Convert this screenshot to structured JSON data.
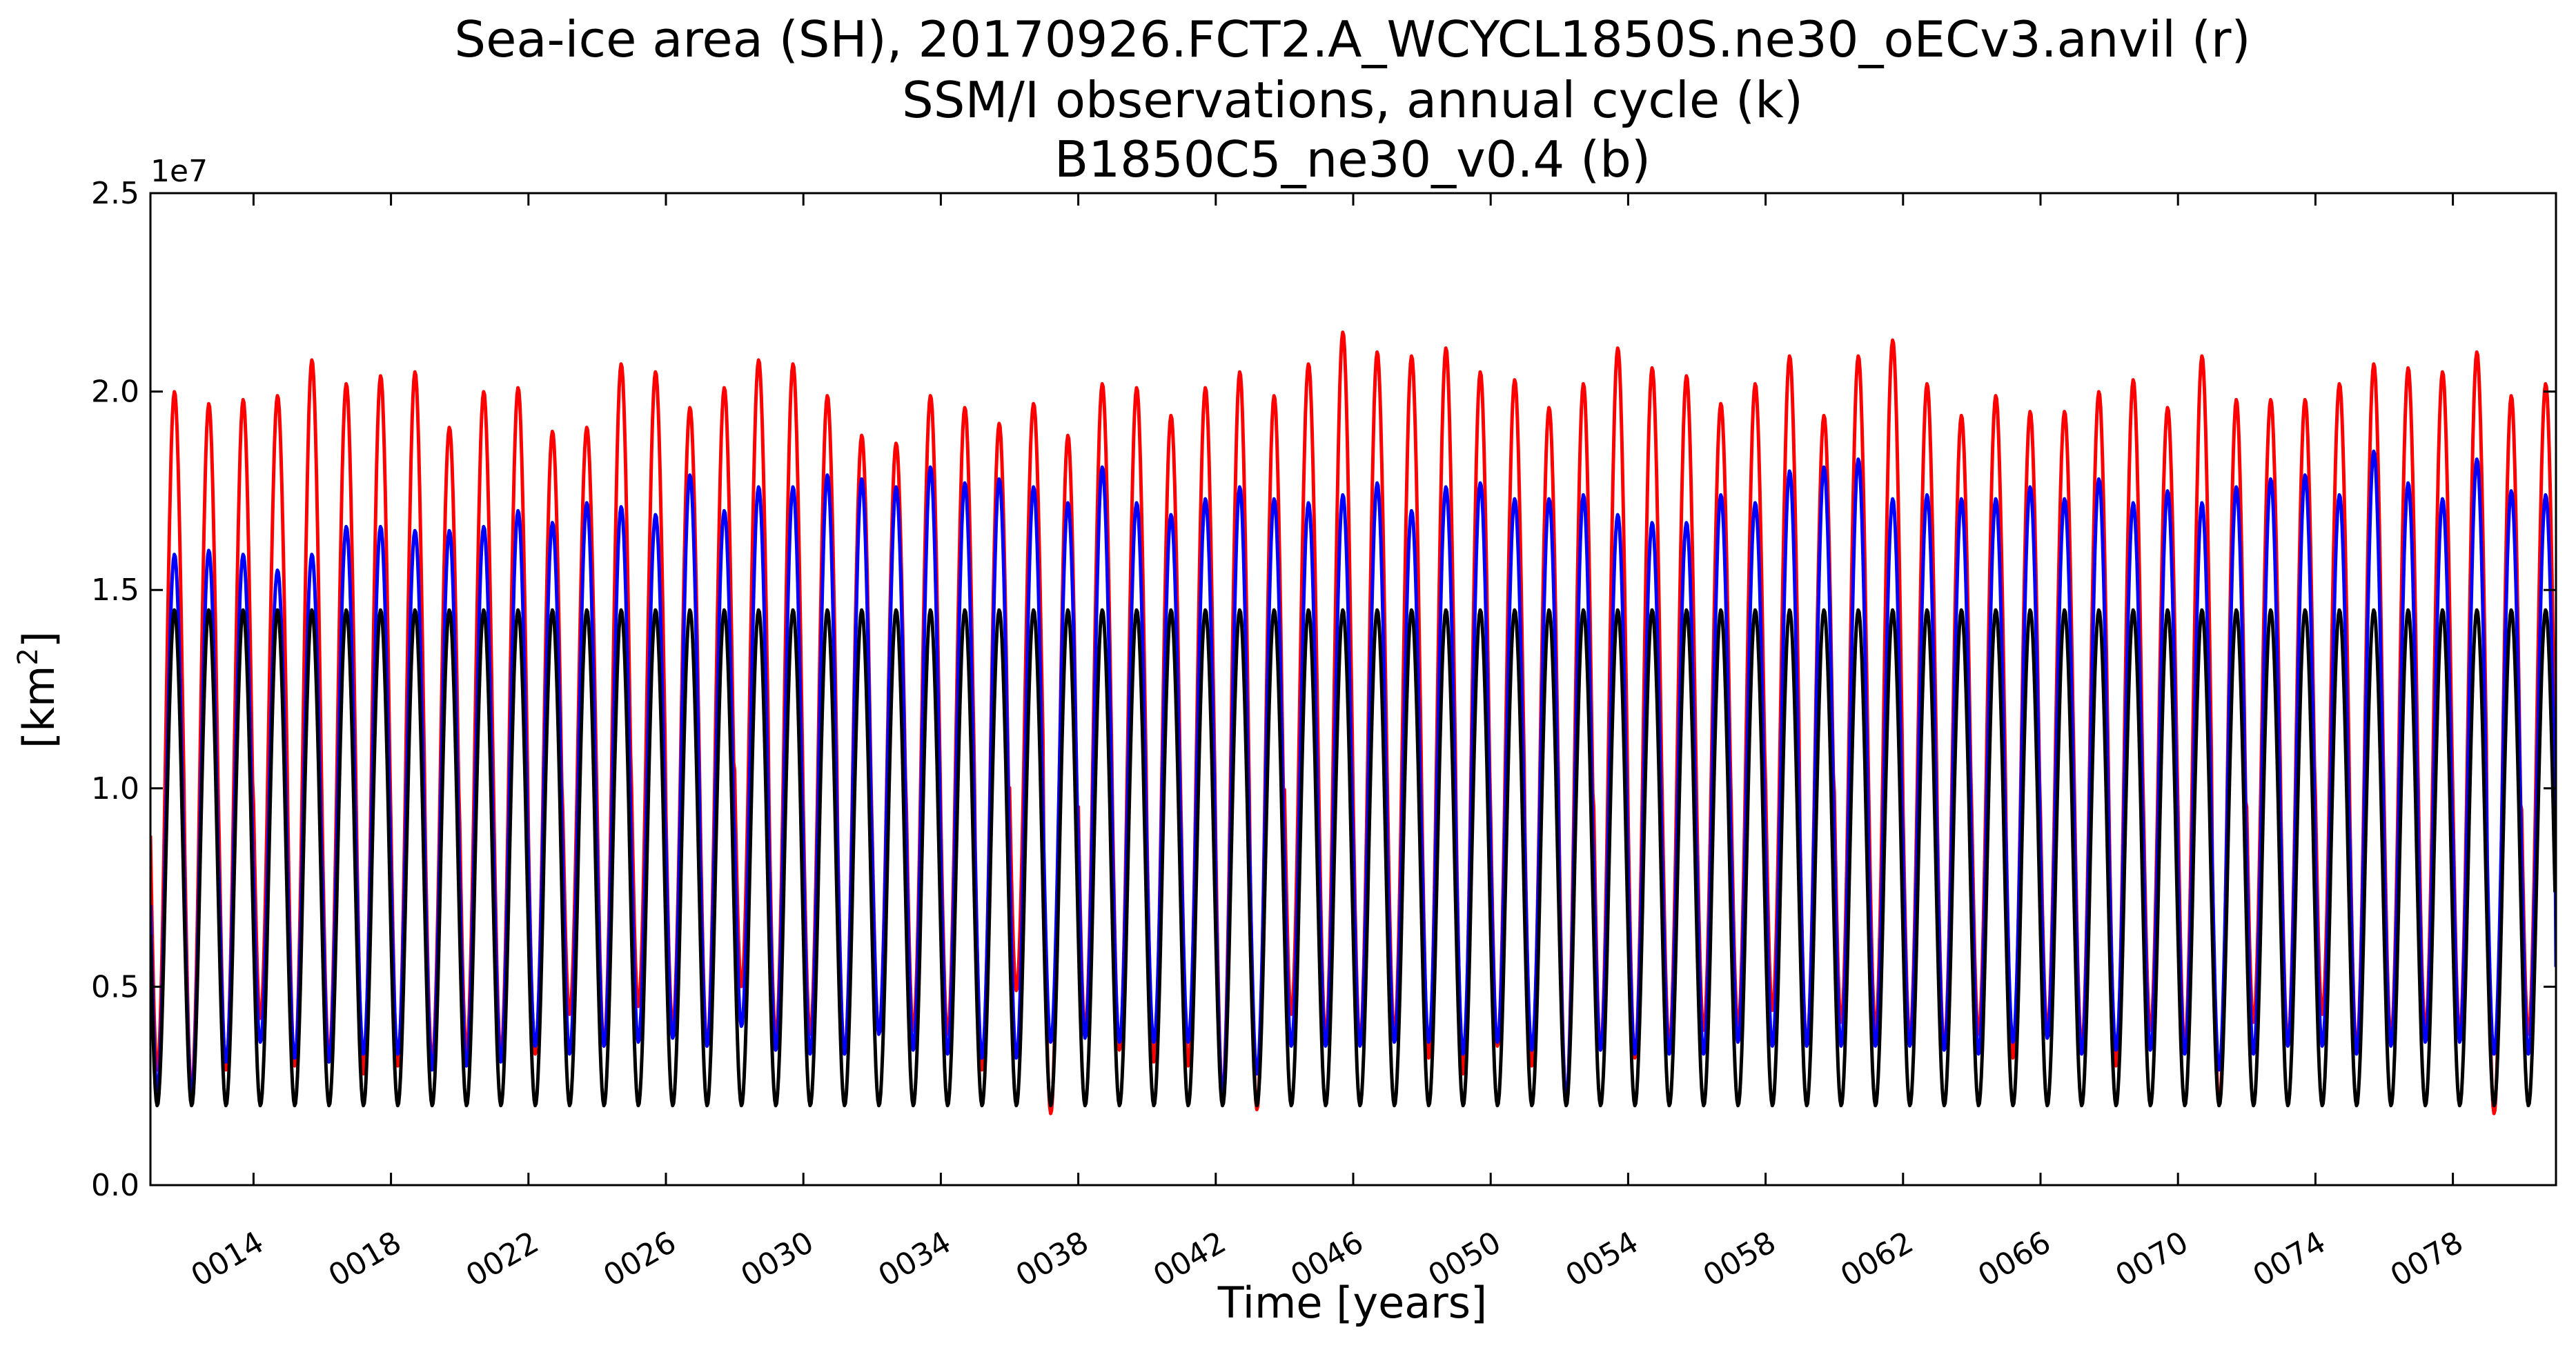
{
  "chart_data": {
    "type": "line",
    "title_lines": [
      "Sea-ice area (SH), 20170926.FCT2.A_WCYCL1850S.ne30_oECv3.anvil (r)",
      "SSM/I observations, annual cycle (k)",
      "B1850C5_ne30_v0.4 (b)"
    ],
    "xlabel": "Time [years]",
    "ylabel_base": "[km",
    "ylabel_sup": "2",
    "ylabel_end": "]",
    "y_offset_label": "1e7",
    "xlim": [
      11,
      81
    ],
    "ylim": [
      0,
      25000000
    ],
    "x_ticks": [
      14,
      18,
      22,
      26,
      30,
      34,
      38,
      42,
      46,
      50,
      54,
      58,
      62,
      66,
      70,
      74,
      78
    ],
    "x_tick_labels": [
      "0014",
      "0018",
      "0022",
      "0026",
      "0030",
      "0034",
      "0038",
      "0042",
      "0046",
      "0050",
      "0054",
      "0058",
      "0062",
      "0066",
      "0070",
      "0074",
      "0078"
    ],
    "y_ticks": [
      0,
      5000000,
      10000000,
      15000000,
      20000000,
      25000000
    ],
    "y_tick_labels": [
      "0.0",
      "0.5",
      "1.0",
      "1.5",
      "2.0",
      "2.5"
    ],
    "peak_time_fraction": 0.7,
    "series": [
      {
        "color": "#ff0000",
        "years": [
          11,
          12,
          13,
          14,
          15,
          16,
          17,
          18,
          19,
          20,
          21,
          22,
          23,
          24,
          25,
          26,
          27,
          28,
          29,
          30,
          31,
          32,
          33,
          34,
          35,
          36,
          37,
          38,
          39,
          40,
          41,
          42,
          43,
          44,
          45,
          46,
          47,
          48,
          49,
          50,
          51,
          52,
          53,
          54,
          55,
          56,
          57,
          58,
          59,
          60,
          61,
          62,
          63,
          64,
          65,
          66,
          67,
          68,
          69,
          70,
          71,
          72,
          73,
          74,
          75,
          76,
          77,
          78,
          79,
          80
        ],
        "annual_max": [
          20000000,
          19700000,
          19800000,
          19900000,
          20800000,
          20200000,
          20400000,
          20500000,
          19100000,
          20000000,
          20100000,
          19000000,
          19100000,
          20700000,
          20500000,
          19600000,
          20100000,
          20800000,
          20700000,
          19900000,
          18900000,
          18700000,
          19900000,
          19600000,
          19200000,
          19700000,
          18900000,
          20200000,
          20100000,
          19400000,
          20100000,
          20500000,
          19900000,
          20700000,
          21500000,
          21000000,
          20900000,
          21100000,
          20500000,
          20300000,
          19600000,
          20200000,
          21100000,
          20600000,
          20400000,
          19700000,
          20200000,
          20900000,
          19400000,
          20900000,
          21300000,
          20200000,
          19400000,
          19900000,
          19500000,
          19500000,
          20000000,
          20300000,
          19600000,
          20900000,
          19800000,
          19800000,
          19800000,
          20200000,
          20700000,
          20600000,
          20500000,
          21000000,
          19900000,
          20200000
        ],
        "annual_min": [
          2900000,
          2400000,
          2900000,
          4200000,
          3000000,
          3200000,
          2800000,
          3000000,
          3100000,
          3400000,
          3300000,
          3300000,
          4300000,
          3500000,
          4500000,
          4000000,
          3500000,
          5000000,
          3700000,
          3800000,
          3300000,
          3800000,
          3900000,
          3800000,
          2900000,
          4900000,
          1800000,
          3900000,
          3400000,
          3100000,
          3000000,
          2300000,
          1900000,
          4300000,
          3700000,
          3600000,
          3800000,
          3200000,
          2800000,
          3500000,
          3000000,
          2100000,
          3400000,
          3200000,
          3500000,
          3900000,
          4000000,
          4400000,
          3500000,
          4100000,
          3900000,
          3700000,
          3500000,
          3800000,
          3200000,
          3900000,
          3500000,
          3000000,
          3900000,
          3500000,
          2000000,
          4100000,
          3600000,
          4300000,
          3400000,
          3700000,
          3900000,
          3800000,
          1800000,
          3800000
        ]
      },
      {
        "color": "#0000ff",
        "years": [
          11,
          12,
          13,
          14,
          15,
          16,
          17,
          18,
          19,
          20,
          21,
          22,
          23,
          24,
          25,
          26,
          27,
          28,
          29,
          30,
          31,
          32,
          33,
          34,
          35,
          36,
          37,
          38,
          39,
          40,
          41,
          42,
          43,
          44,
          45,
          46,
          47,
          48,
          49,
          50,
          51,
          52,
          53,
          54,
          55,
          56,
          57,
          58,
          59,
          60,
          61,
          62,
          63,
          64,
          65,
          66,
          67,
          68,
          69,
          70,
          71,
          72,
          73,
          74,
          75,
          76,
          77,
          78,
          79,
          80
        ],
        "annual_max": [
          15900000,
          16000000,
          15900000,
          15500000,
          15900000,
          16600000,
          16600000,
          16500000,
          16500000,
          16600000,
          17000000,
          16700000,
          17200000,
          17100000,
          16900000,
          17900000,
          17000000,
          17600000,
          17600000,
          17900000,
          17800000,
          17600000,
          18100000,
          17700000,
          17800000,
          17600000,
          17200000,
          18100000,
          17200000,
          16900000,
          17300000,
          17600000,
          17300000,
          17200000,
          17400000,
          17700000,
          17000000,
          17600000,
          17700000,
          17300000,
          17300000,
          17400000,
          16900000,
          16700000,
          16700000,
          17400000,
          17200000,
          18000000,
          18100000,
          18300000,
          17300000,
          17400000,
          17300000,
          17300000,
          17600000,
          17300000,
          17800000,
          17200000,
          17500000,
          17200000,
          17600000,
          17800000,
          17900000,
          17400000,
          18500000,
          17700000,
          17300000,
          18300000,
          17500000,
          17400000
        ],
        "annual_min": [
          2400000,
          2300000,
          3100000,
          3600000,
          3200000,
          3100000,
          3300000,
          3300000,
          2900000,
          3000000,
          3100000,
          3500000,
          3300000,
          3500000,
          3600000,
          3700000,
          3500000,
          4000000,
          3400000,
          3300000,
          3300000,
          3800000,
          3400000,
          3300000,
          3200000,
          3200000,
          3600000,
          3700000,
          3600000,
          3600000,
          3600000,
          2300000,
          2800000,
          3500000,
          3500000,
          3500000,
          3600000,
          3600000,
          3300000,
          3600000,
          3400000,
          2200000,
          3400000,
          3300000,
          3300000,
          3300000,
          3600000,
          3500000,
          3500000,
          3500000,
          3500000,
          3500000,
          3400000,
          3300000,
          3600000,
          3700000,
          3300000,
          3400000,
          3400000,
          3300000,
          2900000,
          3300000,
          3500000,
          3500000,
          3300000,
          3500000,
          3600000,
          3600000,
          3300000,
          3300000
        ],
        "end_value": 5500000
      },
      {
        "color": "#000000",
        "years": [
          11,
          12,
          13,
          14,
          15,
          16,
          17,
          18,
          19,
          20,
          21,
          22,
          23,
          24,
          25,
          26,
          27,
          28,
          29,
          30,
          31,
          32,
          33,
          34,
          35,
          36,
          37,
          38,
          39,
          40,
          41,
          42,
          43,
          44,
          45,
          46,
          47,
          48,
          49,
          50,
          51,
          52,
          53,
          54,
          55,
          56,
          57,
          58,
          59,
          60,
          61,
          62,
          63,
          64,
          65,
          66,
          67,
          68,
          69,
          70,
          71,
          72,
          73,
          74,
          75,
          76,
          77,
          78,
          79,
          80
        ],
        "annual_max_all_years": 14500000,
        "annual_min_all_years": 2000000
      }
    ]
  }
}
